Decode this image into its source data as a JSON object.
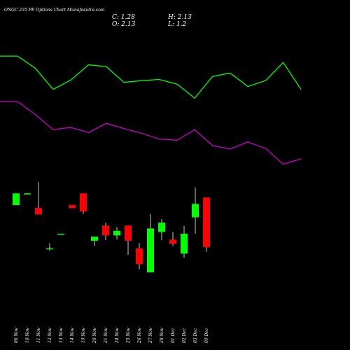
{
  "chart_data": {
    "type": "candlestick",
    "title": "ONGC 235 PE Options Chart Munafasutra.com",
    "ohlc_labels": {
      "close": "C:",
      "open": "O:",
      "high": "H:",
      "low": "L:"
    },
    "categories": [
      "06 Nov",
      "10 Nov",
      "11 Nov",
      "12 Nov",
      "13 Nov",
      "14 Nov",
      "19 Nov",
      "20 Nov",
      "21 Nov",
      "24 Nov",
      "25 Nov",
      "26 Nov",
      "27 Nov",
      "28 Nov",
      "01 Dec",
      "02 Dec",
      "03 Dec",
      "09 Dec"
    ],
    "open": [
      2.0,
      2.2,
      1.95,
      1.26,
      1.51,
      2.0,
      2.2,
      1.39,
      1.65,
      1.48,
      1.65,
      1.26,
      0.85,
      1.54,
      1.41,
      1.17,
      1.79,
      2.13
    ],
    "high": [
      2.2,
      2.21,
      2.39,
      1.35,
      1.51,
      2.0,
      2.2,
      1.46,
      1.7,
      1.62,
      1.65,
      1.35,
      1.85,
      1.76,
      1.54,
      1.64,
      2.3,
      2.13
    ],
    "low": [
      2.0,
      2.18,
      1.84,
      1.22,
      1.51,
      1.95,
      1.85,
      1.3,
      1.4,
      1.41,
      1.15,
      0.9,
      0.85,
      1.4,
      1.3,
      1.1,
      1.51,
      1.2
    ],
    "close": [
      2.2,
      2.2,
      1.84,
      1.26,
      1.51,
      1.95,
      1.89,
      1.46,
      1.48,
      1.56,
      1.39,
      0.99,
      1.6,
      1.7,
      1.34,
      1.51,
      2.02,
      1.28
    ],
    "up_color": "#00ff00",
    "down_color": "#ff0000",
    "ylim": [
      -0.48,
      5.51
    ],
    "lines": [
      {
        "color": "#00ff00",
        "values": [
          4.55,
          4.55,
          4.34,
          3.98,
          4.14,
          4.4,
          4.37,
          4.1,
          4.13,
          4.15,
          4.07,
          3.83,
          4.2,
          4.26,
          4.03,
          4.13,
          4.44,
          3.98
        ]
      },
      {
        "color": "#cc00cc",
        "values": [
          3.77,
          3.77,
          3.55,
          3.29,
          3.33,
          3.24,
          3.4,
          3.31,
          3.23,
          3.13,
          3.11,
          3.29,
          3.02,
          2.96,
          3.08,
          2.97,
          2.7,
          2.79
        ]
      }
    ]
  }
}
